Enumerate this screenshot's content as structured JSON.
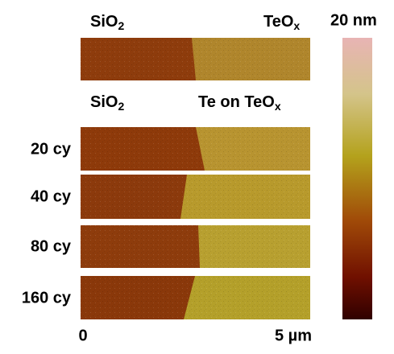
{
  "header": {
    "left": {
      "base": "SiO",
      "sub": "2"
    },
    "right": {
      "base": "TeO",
      "sub": "x"
    },
    "scale_max": "20 nm"
  },
  "subheader": {
    "left": {
      "base": "SiO",
      "sub": "2"
    },
    "right": {
      "base": "Te on TeO",
      "sub": "x"
    }
  },
  "rows": [
    "20 cy",
    "40 cy",
    "80 cy",
    "160 cy"
  ],
  "axis": {
    "start": "0",
    "end": "5 µm"
  }
}
